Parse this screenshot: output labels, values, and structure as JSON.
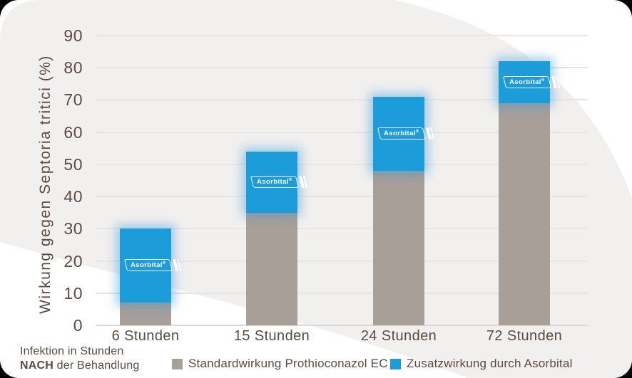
{
  "chart_data": {
    "type": "bar",
    "stacked": true,
    "categories": [
      "6 Stunden",
      "15 Stunden",
      "24 Stunden",
      "72 Stunden"
    ],
    "series": [
      {
        "name": "Standardwirkung Prothioconazol EC",
        "color": "#a99f99",
        "values": [
          7,
          35,
          48,
          69
        ]
      },
      {
        "name": "Zusatzwirkung durch Asorbital",
        "color": "#1c9dda",
        "values": [
          23,
          19,
          23,
          13
        ]
      }
    ],
    "stack_totals": [
      30,
      54,
      71,
      82
    ],
    "ylabel": "Wirkung gegen Septoria tritici (%)",
    "xlabel": "",
    "ylim": [
      0,
      90
    ],
    "yticks": [
      0,
      10,
      20,
      30,
      40,
      50,
      60,
      70,
      80,
      90
    ],
    "grid": true,
    "legend_position": "bottom"
  },
  "badge": {
    "text": "Asorbital",
    "reg": "®"
  },
  "footnote": {
    "line1": "Infektion in Stunden",
    "line2_bold": "NACH",
    "line2_rest": " der Behandlung"
  },
  "legend": [
    {
      "label": "Standardwirkung Prothioconazol EC",
      "color": "#a99f99"
    },
    {
      "label": "Zusatzwirkung durch Asorbital",
      "color": "#1c9dda"
    }
  ],
  "colors": {
    "bar_standard": "#a99f99",
    "bar_asorbital": "#1c9dda",
    "text": "#5a4a42",
    "background_wave": "#f2f0ef",
    "gridline": "#e7e4e1"
  }
}
